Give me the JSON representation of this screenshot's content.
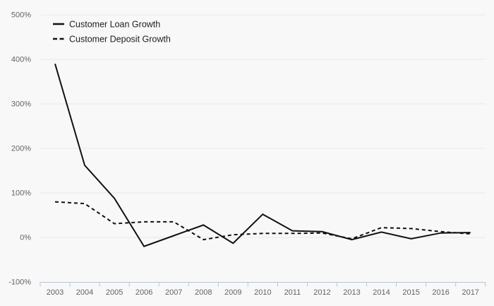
{
  "chart_data": {
    "type": "line",
    "x": [
      "2003",
      "2004",
      "2005",
      "2006",
      "2007",
      "2008",
      "2009",
      "2010",
      "2011",
      "2012",
      "2013",
      "2014",
      "2015",
      "2016",
      "2017"
    ],
    "series": [
      {
        "name": "Customer Loan Growth",
        "line_style": "solid",
        "values": [
          390,
          162,
          88,
          -20,
          4,
          28,
          -13,
          52,
          15,
          13,
          -5,
          12,
          -3,
          10,
          11
        ]
      },
      {
        "name": "Customer Deposit Growth",
        "line_style": "dashed",
        "values": [
          80,
          76,
          31,
          35,
          35,
          -5,
          6,
          9,
          9,
          10,
          -3,
          22,
          20,
          13,
          8
        ]
      }
    ],
    "title": "",
    "xlabel": "",
    "ylabel": "",
    "ylim": [
      -100,
      500
    ],
    "y_ticks": [
      {
        "value": 500,
        "label": "500%"
      },
      {
        "value": 400,
        "label": "400%"
      },
      {
        "value": 300,
        "label": "300%"
      },
      {
        "value": 200,
        "label": "200%"
      },
      {
        "value": 100,
        "label": "100%"
      },
      {
        "value": 0,
        "label": "0%"
      },
      {
        "value": -100,
        "label": "-100%"
      }
    ],
    "grid": true,
    "legend_position": "top-left",
    "colors": {
      "line": "#111111",
      "grid": "#e9e9e9",
      "axis": "#b9c4d8",
      "tick_label": "#636363",
      "legend_text": "#1d1d1d",
      "background": "#f8f8f8"
    }
  }
}
